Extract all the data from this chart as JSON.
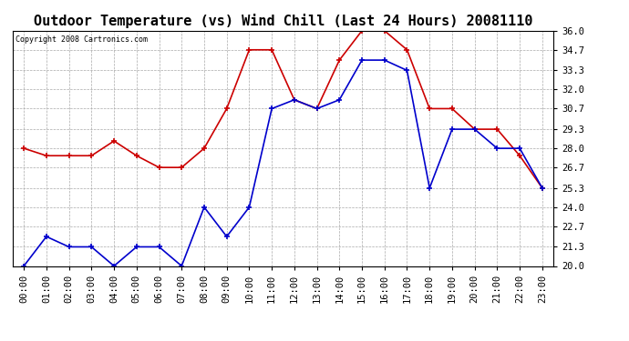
{
  "title": "Outdoor Temperature (vs) Wind Chill (Last 24 Hours) 20081110",
  "copyright": "Copyright 2008 Cartronics.com",
  "hours": [
    "00:00",
    "01:00",
    "02:00",
    "03:00",
    "04:00",
    "05:00",
    "06:00",
    "07:00",
    "08:00",
    "09:00",
    "10:00",
    "11:00",
    "12:00",
    "13:00",
    "14:00",
    "15:00",
    "16:00",
    "17:00",
    "18:00",
    "19:00",
    "20:00",
    "21:00",
    "22:00",
    "23:00"
  ],
  "temp": [
    28.0,
    27.5,
    27.5,
    27.5,
    28.5,
    27.5,
    26.7,
    26.7,
    28.0,
    30.7,
    34.7,
    34.7,
    31.3,
    30.7,
    34.0,
    36.0,
    36.0,
    34.7,
    30.7,
    30.7,
    29.3,
    29.3,
    27.5,
    25.3
  ],
  "windchill": [
    20.0,
    22.0,
    21.3,
    21.3,
    20.0,
    21.3,
    21.3,
    20.0,
    24.0,
    22.0,
    24.0,
    30.7,
    31.3,
    30.7,
    31.3,
    34.0,
    34.0,
    33.3,
    25.3,
    29.3,
    29.3,
    28.0,
    28.0,
    25.3
  ],
  "temp_color": "#cc0000",
  "windchill_color": "#0000cc",
  "ylim": [
    20.0,
    36.0
  ],
  "yticks": [
    20.0,
    21.3,
    22.7,
    24.0,
    25.3,
    26.7,
    28.0,
    29.3,
    30.7,
    32.0,
    33.3,
    34.7,
    36.0
  ],
  "bg_color": "#ffffff",
  "plot_bg_color": "#ffffff",
  "grid_color": "#aaaaaa",
  "title_fontsize": 11,
  "copyright_fontsize": 6,
  "tick_fontsize": 7.5
}
